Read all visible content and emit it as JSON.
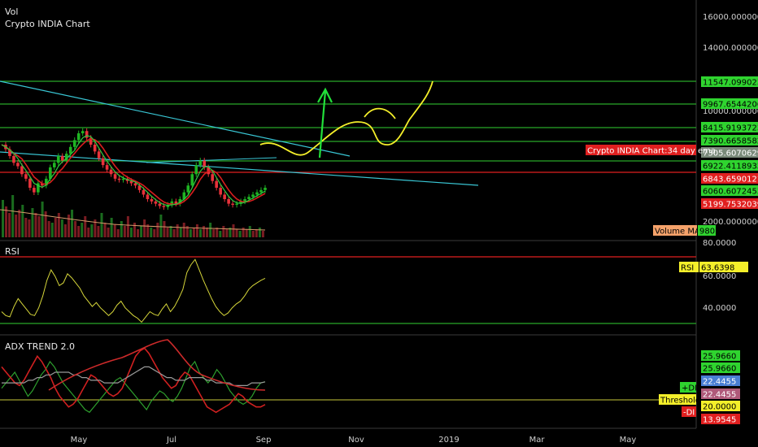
{
  "header": {
    "line1": "Vol",
    "line2": "Crypto INDIA Chart"
  },
  "panes": {
    "rsi_title": "RSI",
    "adx_title": "ADX TREND 2.0"
  },
  "colors": {
    "up": "#1fb523",
    "down": "#e8323a",
    "ema": "#d81e1e",
    "ma": "#2ecc40",
    "trend": "#39c6d4",
    "level": "#28a828",
    "resist": "#e02020",
    "projection": "#f4ef2a",
    "arrow": "#22e03a",
    "rsi": "#d6d63a",
    "adx": "#9a9a9a",
    "plus_di": "#2ea02e",
    "minus_di": "#d02020",
    "threshold": "#c8c83a"
  },
  "chart_data": [
    {
      "type": "line",
      "title": "Crypto INDIA Chart",
      "x_ticks": [
        "May",
        "Jul",
        "Sep",
        "Nov",
        "2019",
        "Mar",
        "May"
      ],
      "y_ticks": [
        "16000.00000000",
        "14000.00000000",
        "12000.00000000",
        "10000.00000000",
        "2000.00000000"
      ],
      "price_levels": [
        {
          "label": "11547.09902349",
          "style": "green"
        },
        {
          "label": "9967.65442069",
          "style": "green"
        },
        {
          "label": "8415.91937233",
          "style": "green"
        },
        {
          "label": "7390.66585823",
          "style": "green"
        },
        {
          "label": "7305.60706299",
          "style": "gray"
        },
        {
          "label": "6922.41189334",
          "style": "green"
        },
        {
          "label": "6843.65901210",
          "style": "red"
        },
        {
          "label": "6060.60724535",
          "style": "green"
        },
        {
          "label": "5199.75320391",
          "style": "red"
        }
      ],
      "ema_label": "Crypto INDIA Chart:34 day ema",
      "volume_ma_label": "Volume MA",
      "volume_ma_value": "980",
      "price": [
        9100,
        8900,
        8600,
        8300,
        8150,
        7800,
        7600,
        7200,
        7000,
        7400,
        7300,
        7600,
        8100,
        8300,
        8600,
        8400,
        8700,
        9000,
        9300,
        9600,
        9700,
        9400,
        9100,
        8800,
        8500,
        8200,
        8000,
        7800,
        7600,
        7550,
        7600,
        7500,
        7400,
        7300,
        7100,
        6900,
        6700,
        6600,
        6500,
        6400,
        6350,
        6450,
        6600,
        6500,
        6700,
        7000,
        7300,
        7800,
        8200,
        8400,
        8100,
        7800,
        7500,
        7200,
        6900,
        6700,
        6500,
        6450,
        6500,
        6600,
        6700,
        6800,
        6900,
        7000,
        7100,
        7200
      ]
    },
    {
      "type": "line",
      "title": "RSI",
      "y_ticks": [
        "80.0000",
        "60.0000",
        "40.0000"
      ],
      "ylim": [
        25,
        80
      ],
      "value_label": "RSI",
      "value_text": "63.6398",
      "values": [
        38,
        35,
        34,
        42,
        48,
        44,
        40,
        36,
        35,
        41,
        50,
        62,
        70,
        65,
        58,
        60,
        67,
        64,
        60,
        56,
        50,
        46,
        42,
        45,
        41,
        38,
        35,
        38,
        43,
        46,
        41,
        38,
        35,
        33,
        30,
        34,
        38,
        36,
        35,
        40,
        44,
        38,
        42,
        48,
        55,
        68,
        74,
        78,
        70,
        62,
        55,
        48,
        42,
        38,
        35,
        37,
        41,
        44,
        46,
        50,
        55,
        58,
        60,
        62,
        63.6
      ]
    },
    {
      "type": "line",
      "title": "ADX TREND 2.0",
      "ylim": [
        5,
        40
      ],
      "series": [
        {
          "name": "+DI",
          "values": [
            20,
            22,
            24,
            26,
            23,
            20,
            17,
            19,
            22,
            25,
            27,
            30,
            28,
            25,
            22,
            20,
            18,
            16,
            14,
            12,
            11,
            13,
            15,
            17,
            19,
            21,
            23,
            24,
            22,
            20,
            18,
            16,
            14,
            12,
            15,
            17,
            19,
            18,
            16,
            15,
            17,
            20,
            24,
            28,
            30,
            26,
            24,
            22,
            24,
            27,
            25,
            22,
            19,
            17,
            15,
            14,
            15,
            17,
            20,
            22,
            22.4
          ]
        },
        {
          "name": "-DI",
          "values": [
            28,
            26,
            24,
            22,
            21,
            23,
            26,
            29,
            32,
            30,
            27,
            24,
            20,
            17,
            15,
            13,
            14,
            16,
            19,
            22,
            25,
            24,
            22,
            20,
            18,
            17,
            18,
            20,
            24,
            28,
            32,
            34,
            35,
            33,
            30,
            27,
            24,
            22,
            20,
            21,
            24,
            26,
            25,
            22,
            19,
            16,
            13,
            12,
            11,
            12,
            13,
            14,
            16,
            18,
            17,
            15,
            14,
            13,
            13,
            13.9
          ]
        },
        {
          "name": "ADX",
          "values": [
            22,
            22,
            22,
            22,
            22,
            22,
            23,
            23,
            24,
            24,
            25,
            25,
            26,
            26,
            26,
            26,
            25,
            25,
            24,
            24,
            23,
            23,
            23,
            22,
            22,
            22,
            22,
            23,
            24,
            25,
            26,
            27,
            28,
            28,
            27,
            26,
            25,
            24,
            24,
            23,
            23,
            23,
            24,
            24,
            24,
            24,
            23,
            23,
            22,
            22,
            22,
            22,
            21,
            21,
            21,
            21,
            22,
            22,
            22,
            22.4
          ]
        }
      ],
      "level_labels": [
        "25.9660",
        "25.9660",
        "22.4455",
        "22.4455",
        "20.0000",
        "13.9545"
      ],
      "legend": [
        "+DI",
        "Threshold",
        "-DI"
      ]
    }
  ]
}
